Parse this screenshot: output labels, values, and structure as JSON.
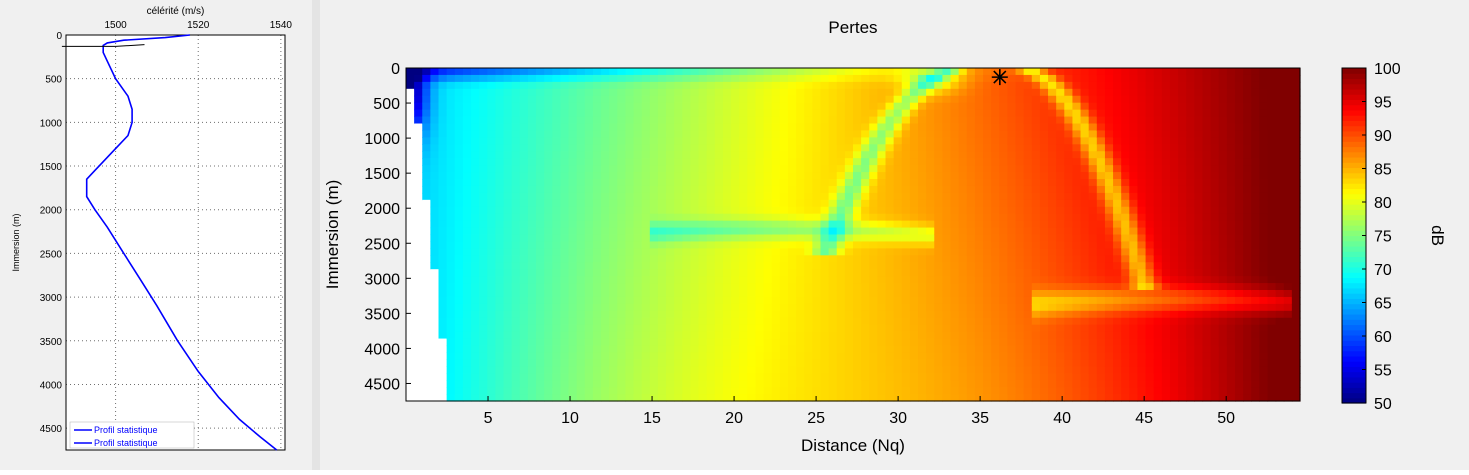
{
  "chart_data": [
    {
      "type": "line",
      "title": "célérité (m/s)",
      "xlabel": "célérité (m/s)",
      "ylabel": "Immersion (m)",
      "x_ticks": [
        1500,
        1520,
        1540
      ],
      "y_ticks": [
        0,
        500,
        1000,
        1500,
        2000,
        2500,
        3000,
        3500,
        4000,
        4500
      ],
      "xlim": [
        1488,
        1541
      ],
      "ylim": [
        0,
        4750
      ],
      "y_reversed": true,
      "grid": true,
      "legend": {
        "position": "bottom-left",
        "entries": [
          "Profil statistique",
          "Profil statistique"
        ]
      },
      "series": [
        {
          "name": "Profil statistique",
          "color": "#0000ff",
          "points": [
            [
              1518,
              0
            ],
            [
              1512,
              30
            ],
            [
              1502,
              60
            ],
            [
              1498,
              90
            ],
            [
              1497,
              120
            ],
            [
              1497,
              200
            ],
            [
              1498,
              300
            ],
            [
              1500,
              500
            ],
            [
              1503,
              700
            ],
            [
              1504,
              850
            ],
            [
              1504,
              1000
            ],
            [
              1503,
              1150
            ],
            [
              1500,
              1300
            ],
            [
              1497,
              1450
            ],
            [
              1495,
              1550
            ],
            [
              1493,
              1650
            ],
            [
              1493,
              1750
            ],
            [
              1493,
              1850
            ],
            [
              1495,
              2000
            ],
            [
              1498,
              2200
            ],
            [
              1502,
              2500
            ],
            [
              1506,
              2800
            ],
            [
              1510,
              3100
            ],
            [
              1515,
              3500
            ],
            [
              1520,
              3850
            ],
            [
              1525,
              4150
            ],
            [
              1530,
              4400
            ],
            [
              1535,
              4600
            ],
            [
              1539,
              4750
            ]
          ]
        },
        {
          "name": "Profil statistique",
          "color": "#000000",
          "points": [
            [
              1487,
              130
            ],
            [
              1500,
              130
            ],
            [
              1507,
              110
            ]
          ]
        }
      ]
    },
    {
      "type": "heatmap",
      "title": "Pertes",
      "xlabel": "Distance (Nq)",
      "ylabel": "Immersion (m)",
      "x_ticks": [
        5,
        10,
        15,
        20,
        25,
        30,
        35,
        40,
        45,
        50
      ],
      "y_ticks": [
        0,
        500,
        1000,
        1500,
        2000,
        2500,
        3000,
        3500,
        4000,
        4500
      ],
      "xlim": [
        0,
        54.5
      ],
      "ylim": [
        0,
        4750
      ],
      "y_reversed": true,
      "source_marker": {
        "distance": 36.2,
        "depth": 130,
        "symbol": "*"
      },
      "colorbar": {
        "label": "dB",
        "range": [
          50,
          100
        ],
        "ticks": [
          50,
          55,
          60,
          65,
          70,
          75,
          80,
          85,
          90,
          95,
          100
        ]
      }
    }
  ]
}
